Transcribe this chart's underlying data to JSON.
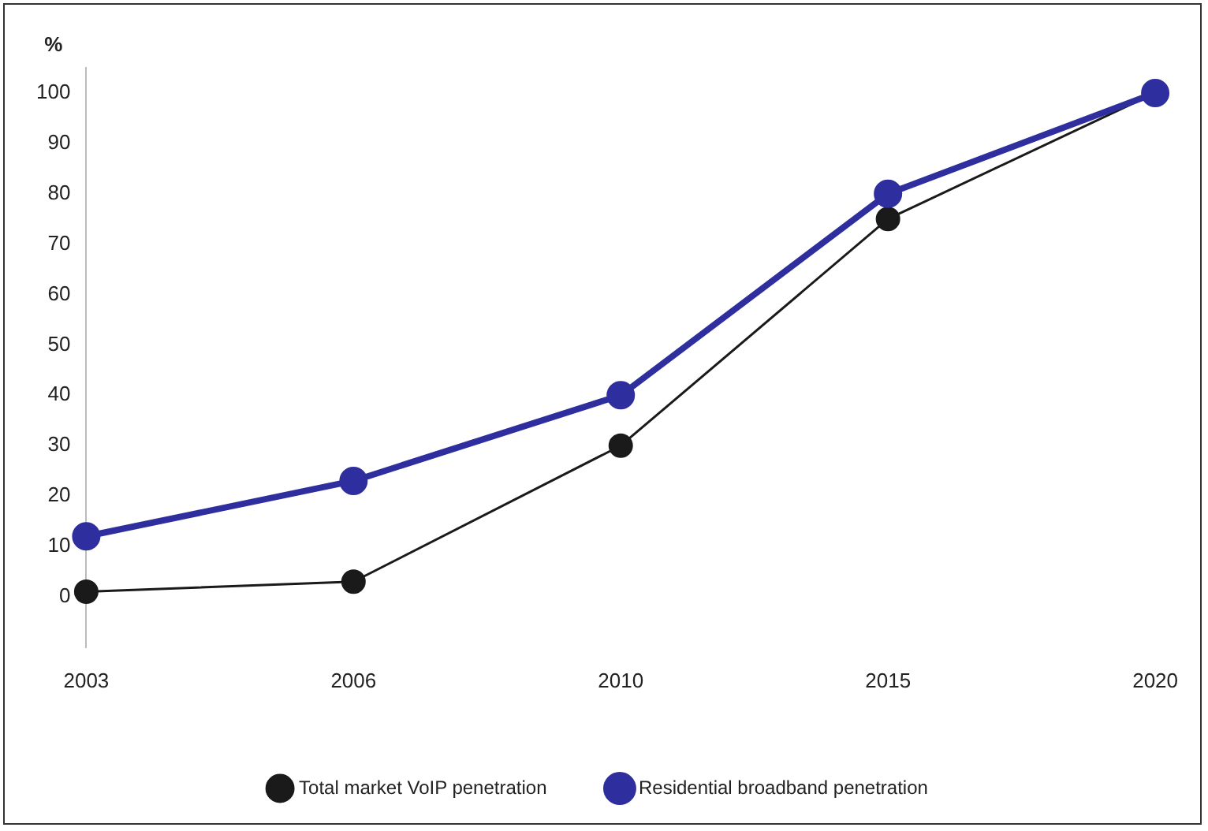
{
  "chart_data": {
    "type": "line",
    "ylabel": "%",
    "categories": [
      "2003",
      "2006",
      "2010",
      "2015",
      "2020"
    ],
    "series": [
      {
        "name": "Total market VoIP penetration",
        "color": "#1a1a1a",
        "values": [
          1,
          3,
          30,
          75,
          100
        ]
      },
      {
        "name": "Residential broadband penetration",
        "color": "#2e2e9e",
        "values": [
          12,
          23,
          40,
          80,
          100
        ]
      }
    ],
    "ylim": [
      -10,
      105
    ],
    "yticks": [
      0,
      10,
      20,
      30,
      40,
      50,
      60,
      70,
      80,
      90,
      100
    ],
    "grid": false,
    "legend": "bottom",
    "marker": "circle",
    "line_style": "solid"
  }
}
